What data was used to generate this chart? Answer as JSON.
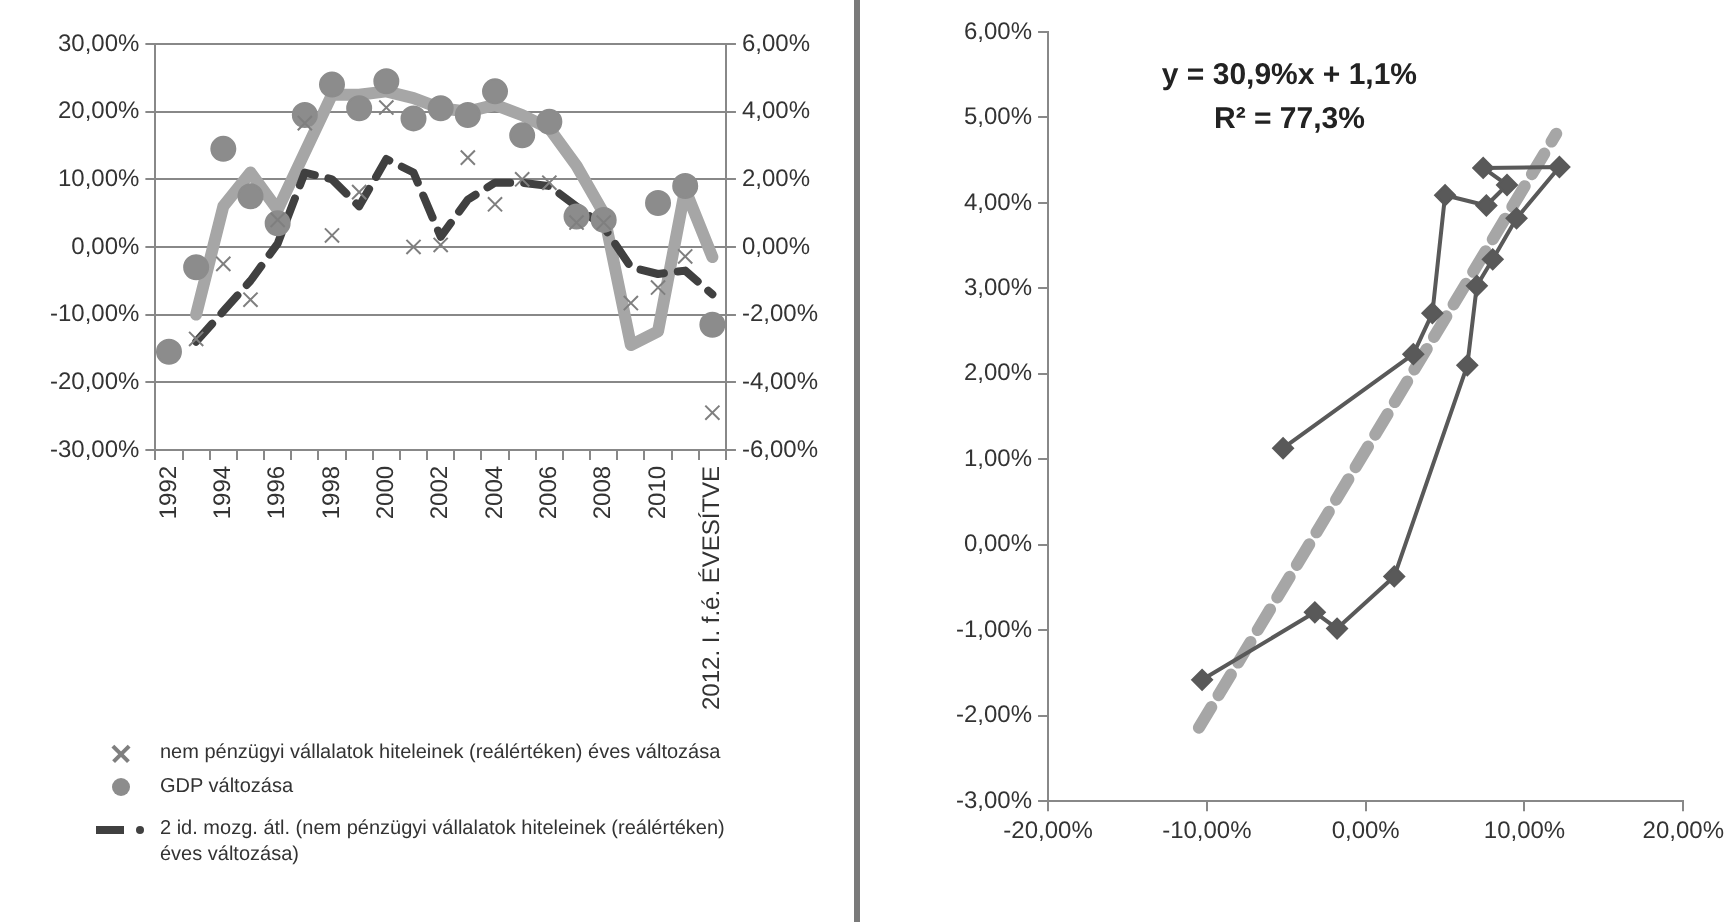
{
  "chart_data": [
    {
      "type": "line",
      "categories": [
        "1992",
        null,
        "1994",
        null,
        "1996",
        null,
        "1998",
        null,
        "2000",
        null,
        "2002",
        null,
        "2004",
        null,
        "2006",
        null,
        "2008",
        null,
        "2010",
        null,
        "2012. I. f.é. ÉVESÍTVE"
      ],
      "series": [
        {
          "name": "nem pénzügyi vállalatok hiteleinek (reálértéken) éves változása",
          "type": "scatter",
          "marker": "cross",
          "color": "#7f7f7f",
          "values": [
            null,
            -13.6,
            -2.5,
            -7.8,
            4,
            18.3,
            1.7,
            8.1,
            20.6,
            0,
            0.3,
            13.2,
            6.3,
            10,
            9.5,
            3.6,
            3.6,
            -8.3,
            -6,
            -1.4,
            -24.5
          ]
        },
        {
          "name": "GDP változása",
          "type": "scatter",
          "marker": "circle",
          "axis": "y2",
          "color": "#8c8c8c",
          "values": [
            -3.1,
            -0.6,
            2.9,
            1.5,
            0.7,
            3.9,
            4.8,
            4.1,
            4.9,
            3.8,
            4.1,
            3.9,
            4.6,
            3.3,
            3.7,
            0.9,
            0.8,
            null,
            1.3,
            1.8,
            -2.3
          ]
        },
        {
          "name": "2 id. mozg. átl. (nem pénzügyi vállalatok hiteleinek (reálértéken) éves változása)",
          "type": "line",
          "marker": "none",
          "line_style": "dashed",
          "color": "#404040",
          "values": [
            null,
            -14,
            -9.5,
            -5,
            0.5,
            11,
            10,
            6,
            13,
            11,
            1.5,
            7,
            9.5,
            9.5,
            9,
            6,
            3,
            -3,
            -4,
            -3.5,
            -7
          ]
        },
        {
          "type": "line",
          "marker": "none",
          "axis": "y2",
          "color": "#a6a6a6",
          "values": [
            null,
            -2,
            1.2,
            2.2,
            1.1,
            2.8,
            4.5,
            4.5,
            4.6,
            4.4,
            4.1,
            4.0,
            4.2,
            3.9,
            3.5,
            2.4,
            1.0,
            -2.9,
            -2.5,
            1.7,
            -0.3
          ]
        }
      ],
      "ylim": [
        -30,
        30
      ],
      "yticks": [
        {
          "value": -30,
          "label": "-30,00%"
        },
        {
          "value": -20,
          "label": "-20,00%"
        },
        {
          "value": -10,
          "label": "-10,00%"
        },
        {
          "value": 0,
          "label": "0,00%"
        },
        {
          "value": 10,
          "label": "10,00%"
        },
        {
          "value": 20,
          "label": "20,00%"
        },
        {
          "value": 30,
          "label": "30,00%"
        }
      ],
      "y2lim": [
        -6,
        6
      ],
      "y2ticks": [
        {
          "value": -6,
          "label": "-6,00%"
        },
        {
          "value": -4,
          "label": "-4,00%"
        },
        {
          "value": -2,
          "label": "-2,00%"
        },
        {
          "value": 0,
          "label": "0,00%"
        },
        {
          "value": 2,
          "label": "2,00%"
        },
        {
          "value": 4,
          "label": "4,00%"
        },
        {
          "value": 6,
          "label": "6,00%"
        }
      ],
      "grid": "y",
      "legend": "bottom"
    },
    {
      "type": "line",
      "annotations": [
        "y = 30,9%x + 1,1%",
        "R² = 77,3%"
      ],
      "series": [
        {
          "marker": "diamond",
          "color": "#595959",
          "x": [
            -10.3,
            -3.2,
            -1.8,
            1.8,
            6.4,
            7.0,
            8.0,
            9.5,
            12.2,
            7.4,
            8.9,
            7.6,
            5.0,
            4.2,
            3.0,
            -5.2
          ],
          "values": [
            -1.58,
            -0.79,
            -0.98,
            -0.37,
            2.1,
            3.03,
            3.34,
            3.82,
            4.42,
            4.41,
            4.21,
            3.97,
            4.09,
            2.71,
            2.23,
            1.13
          ]
        },
        {
          "marker": "none",
          "line_style": "dashed",
          "color": "#a6a6a6",
          "x": [
            -10.5,
            12
          ],
          "values": [
            -2.14,
            4.81
          ]
        }
      ],
      "xlim": [
        -20,
        20
      ],
      "xticks": [
        {
          "value": -20,
          "label": "-20,00%"
        },
        {
          "value": -10,
          "label": "-10,00%"
        },
        {
          "value": 0,
          "label": "0,00%"
        },
        {
          "value": 10,
          "label": "10,00%"
        },
        {
          "value": 20,
          "label": "20,00%"
        }
      ],
      "ylim": [
        -3,
        6
      ],
      "yticks": [
        {
          "value": -3,
          "label": "-3,00%"
        },
        {
          "value": -2,
          "label": "-2,00%"
        },
        {
          "value": -1,
          "label": "-1,00%"
        },
        {
          "value": 0,
          "label": "0,00%"
        },
        {
          "value": 1,
          "label": "1,00%"
        },
        {
          "value": 2,
          "label": "2,00%"
        },
        {
          "value": 3,
          "label": "3,00%"
        },
        {
          "value": 4,
          "label": "4,00%"
        },
        {
          "value": 5,
          "label": "5,00%"
        },
        {
          "value": 6,
          "label": "6,00%"
        }
      ],
      "grid": false
    }
  ]
}
